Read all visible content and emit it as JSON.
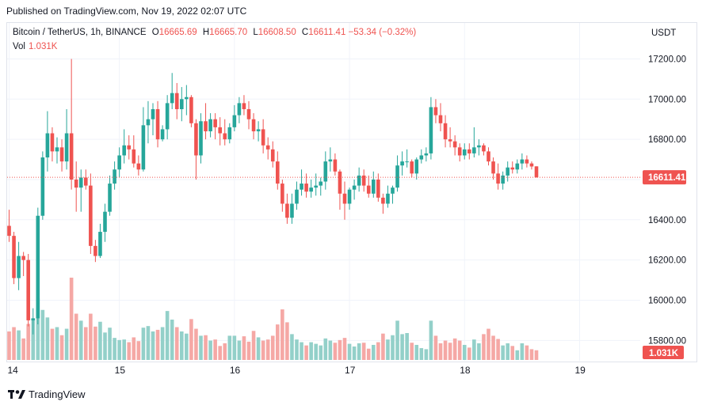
{
  "published": "Published on TradingView.com, Nov 19, 2022 02:07 UTC",
  "legend": {
    "symbol": "Bitcoin / TetherUS, 1h, BINANCE",
    "o_label": "O",
    "o": "16665.69",
    "h_label": "H",
    "h": "16665.70",
    "l_label": "L",
    "l": "16608.50",
    "c_label": "C",
    "c": "16611.41",
    "change": "−53.34 (−0.32%)"
  },
  "vol_legend": {
    "label": "Vol",
    "value": "1.031K"
  },
  "brand": "TradingView",
  "colors": {
    "up": "#26a69a",
    "down": "#ef5350",
    "up_vol": "#93d0c9",
    "down_vol": "#f5a8a5",
    "grid": "#f0f3fa"
  },
  "chart_data": {
    "type": "candlestick",
    "currency_label": "USDT",
    "y_ticks": [
      15800,
      16000,
      16200,
      16400,
      16600,
      16800,
      17000,
      17200
    ],
    "y_tick_labels": [
      "15800.00",
      "16000.00",
      "16200.00",
      "16400.00",
      "16600.00",
      "16800.00",
      "17000.00",
      "17200.00"
    ],
    "ylim": [
      15640,
      17310
    ],
    "x_ticks": [
      {
        "label": "14",
        "index": 0
      },
      {
        "label": "15",
        "index": 23
      },
      {
        "label": "16",
        "index": 47
      },
      {
        "label": "17",
        "index": 71
      },
      {
        "label": "18",
        "index": 95
      },
      {
        "label": "19",
        "index": 119
      }
    ],
    "last_price": 16611.41,
    "last_price_label": "16611.41",
    "last_volume_label": "1.031K",
    "grid": true,
    "candles": [
      [
        16370,
        16450,
        16290,
        16320,
        0.53
      ],
      [
        16320,
        16340,
        16080,
        16110,
        0.61
      ],
      [
        16110,
        16290,
        16050,
        16220,
        0.55
      ],
      [
        16220,
        16240,
        16120,
        16200,
        0.4
      ],
      [
        16200,
        16230,
        15870,
        15900,
        0.67
      ],
      [
        15900,
        15960,
        15830,
        15910,
        0.74
      ],
      [
        15910,
        16460,
        15880,
        16420,
        1.15
      ],
      [
        16420,
        16740,
        16400,
        16710,
        0.93
      ],
      [
        16710,
        16940,
        16640,
        16830,
        0.79
      ],
      [
        16830,
        16860,
        16690,
        16740,
        0.58
      ],
      [
        16740,
        16810,
        16680,
        16760,
        0.61
      ],
      [
        16760,
        16800,
        16640,
        16690,
        0.46
      ],
      [
        16690,
        16950,
        16650,
        16830,
        0.58
      ],
      [
        16830,
        17200,
        16550,
        16600,
        1.53
      ],
      [
        16600,
        16690,
        16440,
        16560,
        0.86
      ],
      [
        16560,
        16650,
        16440,
        16610,
        0.73
      ],
      [
        16610,
        16650,
        16550,
        16570,
        0.61
      ],
      [
        16570,
        16630,
        16230,
        16270,
        0.86
      ],
      [
        16270,
        16300,
        16190,
        16220,
        0.62
      ],
      [
        16220,
        16380,
        16210,
        16340,
        0.71
      ],
      [
        16340,
        16480,
        16290,
        16440,
        0.51
      ],
      [
        16440,
        16620,
        16420,
        16580,
        0.6
      ],
      [
        16580,
        16690,
        16550,
        16650,
        0.41
      ],
      [
        16650,
        16760,
        16610,
        16720,
        0.37
      ],
      [
        16720,
        16850,
        16680,
        16770,
        0.38
      ],
      [
        16770,
        16820,
        16700,
        16750,
        0.33
      ],
      [
        16750,
        16820,
        16660,
        16680,
        0.42
      ],
      [
        16680,
        16720,
        16620,
        16650,
        0.35
      ],
      [
        16650,
        16960,
        16640,
        16870,
        0.6
      ],
      [
        16870,
        16990,
        16780,
        16900,
        0.63
      ],
      [
        16900,
        16980,
        16820,
        16950,
        0.53
      ],
      [
        16950,
        16990,
        16760,
        16800,
        0.56
      ],
      [
        16800,
        16870,
        16790,
        16850,
        0.61
      ],
      [
        16850,
        17020,
        16800,
        16980,
        0.91
      ],
      [
        16980,
        17130,
        16950,
        17030,
        0.75
      ],
      [
        17030,
        17080,
        16900,
        16950,
        0.61
      ],
      [
        16950,
        17060,
        16890,
        17000,
        0.53
      ],
      [
        17000,
        17070,
        16920,
        17010,
        0.49
      ],
      [
        17010,
        17020,
        16860,
        16880,
        0.76
      ],
      [
        16880,
        16900,
        16600,
        16720,
        0.58
      ],
      [
        16720,
        16930,
        16680,
        16890,
        0.45
      ],
      [
        16890,
        16980,
        16800,
        16840,
        0.46
      ],
      [
        16840,
        16930,
        16810,
        16900,
        0.36
      ],
      [
        16900,
        16930,
        16800,
        16860,
        0.38
      ],
      [
        16860,
        16910,
        16770,
        16830,
        0.26
      ],
      [
        16830,
        16900,
        16770,
        16800,
        0.31
      ],
      [
        16800,
        16880,
        16780,
        16860,
        0.45
      ],
      [
        16860,
        16970,
        16840,
        16920,
        0.45
      ],
      [
        16920,
        17010,
        16880,
        16980,
        0.36
      ],
      [
        16980,
        17020,
        16920,
        16950,
        0.44
      ],
      [
        16950,
        16990,
        16850,
        16900,
        0.34
      ],
      [
        16900,
        16930,
        16800,
        16840,
        0.54
      ],
      [
        16840,
        16890,
        16790,
        16850,
        0.42
      ],
      [
        16850,
        16900,
        16730,
        16770,
        0.36
      ],
      [
        16770,
        16810,
        16700,
        16750,
        0.38
      ],
      [
        16750,
        16790,
        16660,
        16690,
        0.45
      ],
      [
        16690,
        16740,
        16550,
        16580,
        0.66
      ],
      [
        16580,
        16600,
        16440,
        16480,
        0.94
      ],
      [
        16480,
        16530,
        16380,
        16410,
        0.7
      ],
      [
        16410,
        16530,
        16380,
        16480,
        0.48
      ],
      [
        16480,
        16590,
        16450,
        16550,
        0.38
      ],
      [
        16550,
        16650,
        16520,
        16580,
        0.33
      ],
      [
        16580,
        16630,
        16510,
        16540,
        0.27
      ],
      [
        16540,
        16600,
        16510,
        16560,
        0.33
      ],
      [
        16560,
        16630,
        16520,
        16570,
        0.3
      ],
      [
        16570,
        16610,
        16520,
        16590,
        0.27
      ],
      [
        16590,
        16740,
        16550,
        16690,
        0.4
      ],
      [
        16690,
        16760,
        16640,
        16700,
        0.36
      ],
      [
        16700,
        16730,
        16620,
        16640,
        0.32
      ],
      [
        16640,
        16650,
        16450,
        16530,
        0.37
      ],
      [
        16530,
        16590,
        16400,
        16480,
        0.41
      ],
      [
        16480,
        16560,
        16450,
        16550,
        0.3
      ],
      [
        16550,
        16600,
        16500,
        16570,
        0.25
      ],
      [
        16570,
        16660,
        16540,
        16620,
        0.31
      ],
      [
        16620,
        16650,
        16540,
        16570,
        0.32
      ],
      [
        16570,
        16620,
        16510,
        16530,
        0.21
      ],
      [
        16530,
        16640,
        16510,
        16600,
        0.28
      ],
      [
        16600,
        16630,
        16490,
        16510,
        0.33
      ],
      [
        16510,
        16530,
        16430,
        16480,
        0.49
      ],
      [
        16480,
        16570,
        16460,
        16530,
        0.38
      ],
      [
        16530,
        16570,
        16480,
        16560,
        0.46
      ],
      [
        16560,
        16720,
        16540,
        16670,
        0.73
      ],
      [
        16670,
        16740,
        16620,
        16690,
        0.48
      ],
      [
        16690,
        16750,
        16660,
        16690,
        0.5
      ],
      [
        16690,
        16700,
        16610,
        16630,
        0.32
      ],
      [
        16630,
        16710,
        16600,
        16700,
        0.28
      ],
      [
        16700,
        16750,
        16680,
        16720,
        0.22
      ],
      [
        16720,
        16760,
        16690,
        16730,
        0.2
      ],
      [
        16730,
        17010,
        16700,
        16960,
        0.73
      ],
      [
        16960,
        17000,
        16880,
        16920,
        0.45
      ],
      [
        16920,
        16980,
        16840,
        16880,
        0.31
      ],
      [
        16880,
        16920,
        16760,
        16800,
        0.36
      ],
      [
        16800,
        16860,
        16760,
        16790,
        0.32
      ],
      [
        16790,
        16820,
        16720,
        16760,
        0.4
      ],
      [
        16760,
        16780,
        16690,
        16720,
        0.36
      ],
      [
        16720,
        16780,
        16700,
        16750,
        0.28
      ],
      [
        16750,
        16780,
        16700,
        16730,
        0.23
      ],
      [
        16730,
        16860,
        16710,
        16760,
        0.38
      ],
      [
        16760,
        16800,
        16720,
        16770,
        0.31
      ],
      [
        16770,
        16780,
        16720,
        16740,
        0.48
      ],
      [
        16740,
        16760,
        16670,
        16690,
        0.58
      ],
      [
        16690,
        16710,
        16600,
        16630,
        0.45
      ],
      [
        16630,
        16680,
        16550,
        16580,
        0.39
      ],
      [
        16580,
        16640,
        16550,
        16620,
        0.27
      ],
      [
        16620,
        16690,
        16590,
        16660,
        0.31
      ],
      [
        16660,
        16690,
        16630,
        16650,
        0.26
      ],
      [
        16650,
        16700,
        16630,
        16680,
        0.18
      ],
      [
        16680,
        16730,
        16650,
        16700,
        0.31
      ],
      [
        16700,
        16720,
        16660,
        16680,
        0.27
      ],
      [
        16680,
        16690,
        16650,
        16665,
        0.2
      ],
      [
        16665.69,
        16665.7,
        16608.5,
        16611.41,
        0.18
      ]
    ]
  }
}
